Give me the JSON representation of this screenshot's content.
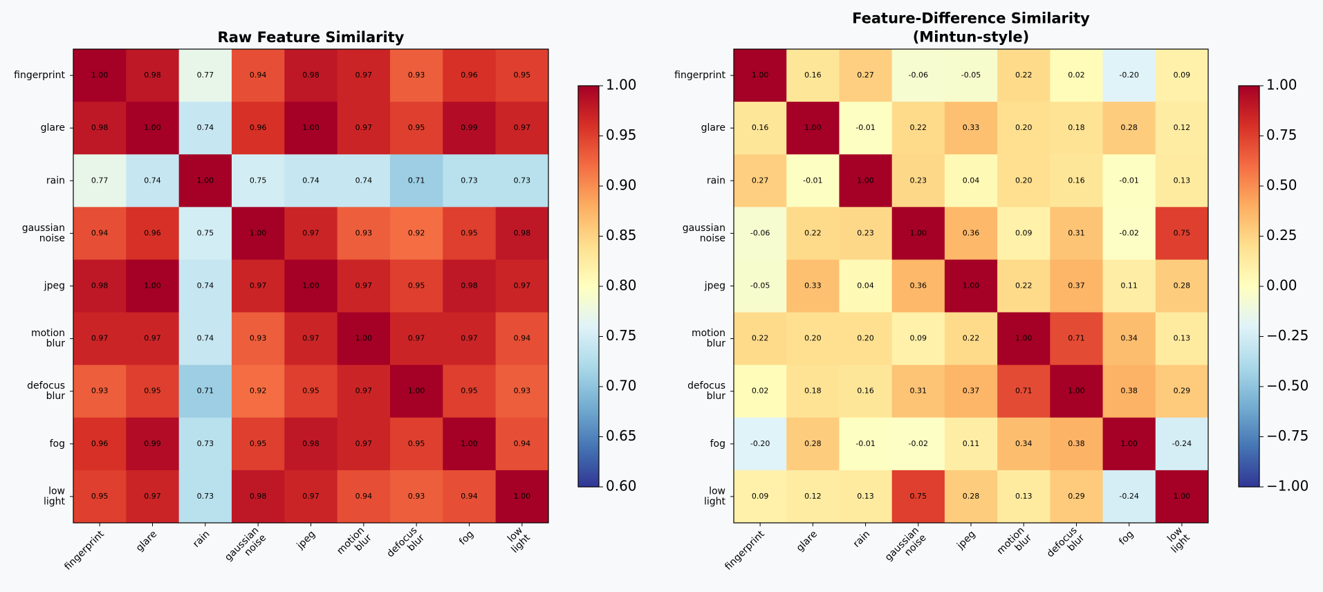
{
  "chart_data": [
    {
      "type": "heatmap",
      "title": "Raw Feature Similarity",
      "categories": [
        "fingerprint",
        "glare",
        "rain",
        "gaussian\nnoise",
        "jpeg",
        "motion\nblur",
        "defocus\nblur",
        "fog",
        "low\nlight"
      ],
      "values": [
        [
          1.0,
          0.98,
          0.77,
          0.94,
          0.98,
          0.97,
          0.93,
          0.96,
          0.95
        ],
        [
          0.98,
          1.0,
          0.74,
          0.96,
          1.0,
          0.97,
          0.95,
          0.99,
          0.97
        ],
        [
          0.77,
          0.74,
          1.0,
          0.75,
          0.74,
          0.74,
          0.71,
          0.73,
          0.73
        ],
        [
          0.94,
          0.96,
          0.75,
          1.0,
          0.97,
          0.93,
          0.92,
          0.95,
          0.98
        ],
        [
          0.98,
          1.0,
          0.74,
          0.97,
          1.0,
          0.97,
          0.95,
          0.98,
          0.97
        ],
        [
          0.97,
          0.97,
          0.74,
          0.93,
          0.97,
          1.0,
          0.97,
          0.97,
          0.94
        ],
        [
          0.93,
          0.95,
          0.71,
          0.92,
          0.95,
          0.97,
          1.0,
          0.95,
          0.93
        ],
        [
          0.96,
          0.99,
          0.73,
          0.95,
          0.98,
          0.97,
          0.95,
          1.0,
          0.94
        ],
        [
          0.95,
          0.97,
          0.73,
          0.98,
          0.97,
          0.94,
          0.93,
          0.94,
          1.0
        ]
      ],
      "value_labels": [
        [
          "1.00",
          "0.98",
          "0.77",
          "0.94",
          "0.98",
          "0.97",
          "0.93",
          "0.96",
          "0.95"
        ],
        [
          "0.98",
          "1.00",
          "0.74",
          "0.96",
          "1.00",
          "0.97",
          "0.95",
          "0.99",
          "0.97"
        ],
        [
          "0.77",
          "0.74",
          "1.00",
          "0.75",
          "0.74",
          "0.74",
          "0.71",
          "0.73",
          "0.73"
        ],
        [
          "0.94",
          "0.96",
          "0.75",
          "1.00",
          "0.97",
          "0.93",
          "0.92",
          "0.95",
          "0.98"
        ],
        [
          "0.98",
          "1.00",
          "0.74",
          "0.97",
          "1.00",
          "0.97",
          "0.95",
          "0.98",
          "0.97"
        ],
        [
          "0.97",
          "0.97",
          "0.74",
          "0.93",
          "0.97",
          "1.00",
          "0.97",
          "0.97",
          "0.94"
        ],
        [
          "0.93",
          "0.95",
          "0.71",
          "0.92",
          "0.95",
          "0.97",
          "1.00",
          "0.95",
          "0.93"
        ],
        [
          "0.96",
          "0.99",
          "0.73",
          "0.95",
          "0.98",
          "0.97",
          "0.95",
          "1.00",
          "0.94"
        ],
        [
          "0.95",
          "0.97",
          "0.73",
          "0.98",
          "0.97",
          "0.94",
          "0.93",
          "0.94",
          "1.00"
        ]
      ],
      "label_color": "#ffffff",
      "colorscale": [
        "#313695",
        "#4575b4",
        "#74add1",
        "#abd9e9",
        "#e0f3f8",
        "#ffffbf",
        "#fee090",
        "#fdae61",
        "#f46d43",
        "#d73027",
        "#a50026"
      ],
      "clim": [
        0.6,
        1.0
      ],
      "cticks": [
        {
          "value": 0.6,
          "label": "0.60"
        },
        {
          "value": 0.65,
          "label": "0.65"
        },
        {
          "value": 0.7,
          "label": "0.70"
        },
        {
          "value": 0.75,
          "label": "0.75"
        },
        {
          "value": 0.8,
          "label": "0.80"
        },
        {
          "value": 0.85,
          "label": "0.85"
        },
        {
          "value": 0.9,
          "label": "0.90"
        },
        {
          "value": 0.95,
          "label": "0.95"
        },
        {
          "value": 1.0,
          "label": "1.00"
        }
      ]
    },
    {
      "type": "heatmap",
      "title": "Feature-Difference Similarity\n(Mintun-style)",
      "categories": [
        "fingerprint",
        "glare",
        "rain",
        "gaussian\nnoise",
        "jpeg",
        "motion\nblur",
        "defocus\nblur",
        "fog",
        "low\nlight"
      ],
      "values": [
        [
          1.0,
          0.16,
          0.27,
          -0.06,
          -0.05,
          0.22,
          0.02,
          -0.2,
          0.09
        ],
        [
          0.16,
          1.0,
          -0.01,
          0.22,
          0.33,
          0.2,
          0.18,
          0.28,
          0.12
        ],
        [
          0.27,
          -0.01,
          1.0,
          0.23,
          0.04,
          0.2,
          0.16,
          -0.01,
          0.13
        ],
        [
          -0.06,
          0.22,
          0.23,
          1.0,
          0.36,
          0.09,
          0.31,
          -0.02,
          0.75
        ],
        [
          -0.05,
          0.33,
          0.04,
          0.36,
          1.0,
          0.22,
          0.37,
          0.11,
          0.28
        ],
        [
          0.22,
          0.2,
          0.2,
          0.09,
          0.22,
          1.0,
          0.71,
          0.34,
          0.13
        ],
        [
          0.02,
          0.18,
          0.16,
          0.31,
          0.37,
          0.71,
          1.0,
          0.38,
          0.29
        ],
        [
          -0.2,
          0.28,
          -0.01,
          -0.02,
          0.11,
          0.34,
          0.38,
          1.0,
          -0.24
        ],
        [
          0.09,
          0.12,
          0.13,
          0.75,
          0.28,
          0.13,
          0.29,
          -0.24,
          1.0
        ]
      ],
      "value_labels": [
        [
          "1.00",
          "0.16",
          "0.27",
          "-0.06",
          "-0.05",
          "0.22",
          "0.02",
          "-0.20",
          "0.09"
        ],
        [
          "0.16",
          "1.00",
          "-0.01",
          "0.22",
          "0.33",
          "0.20",
          "0.18",
          "0.28",
          "0.12"
        ],
        [
          "0.27",
          "-0.01",
          "1.00",
          "0.23",
          "0.04",
          "0.20",
          "0.16",
          "-0.01",
          "0.13"
        ],
        [
          "-0.06",
          "0.22",
          "0.23",
          "1.00",
          "0.36",
          "0.09",
          "0.31",
          "-0.02",
          "0.75"
        ],
        [
          "-0.05",
          "0.33",
          "0.04",
          "0.36",
          "1.00",
          "0.22",
          "0.37",
          "0.11",
          "0.28"
        ],
        [
          "0.22",
          "0.20",
          "0.20",
          "0.09",
          "0.22",
          "1.00",
          "0.71",
          "0.34",
          "0.13"
        ],
        [
          "0.02",
          "0.18",
          "0.16",
          "0.31",
          "0.37",
          "0.71",
          "1.00",
          "0.38",
          "0.29"
        ],
        [
          "-0.20",
          "0.28",
          "-0.01",
          "-0.02",
          "0.11",
          "0.34",
          "0.38",
          "1.00",
          "-0.24"
        ],
        [
          "0.09",
          "0.12",
          "0.13",
          "0.75",
          "0.28",
          "0.13",
          "0.29",
          "-0.24",
          "1.00"
        ]
      ],
      "label_color": "#000000",
      "colorscale": [
        "#313695",
        "#4575b4",
        "#74add1",
        "#abd9e9",
        "#e0f3f8",
        "#ffffbf",
        "#fee090",
        "#fdae61",
        "#f46d43",
        "#d73027",
        "#a50026"
      ],
      "clim": [
        -1.0,
        1.0
      ],
      "cticks": [
        {
          "value": -1.0,
          "label": "−1.00"
        },
        {
          "value": -0.75,
          "label": "−0.75"
        },
        {
          "value": -0.5,
          "label": "−0.50"
        },
        {
          "value": -0.25,
          "label": "−0.25"
        },
        {
          "value": 0,
          "label": "0.00"
        },
        {
          "value": 0.25,
          "label": "0.25"
        },
        {
          "value": 0.5,
          "label": "0.50"
        },
        {
          "value": 0.75,
          "label": "0.75"
        },
        {
          "value": 1.0,
          "label": "1.00"
        }
      ]
    }
  ]
}
